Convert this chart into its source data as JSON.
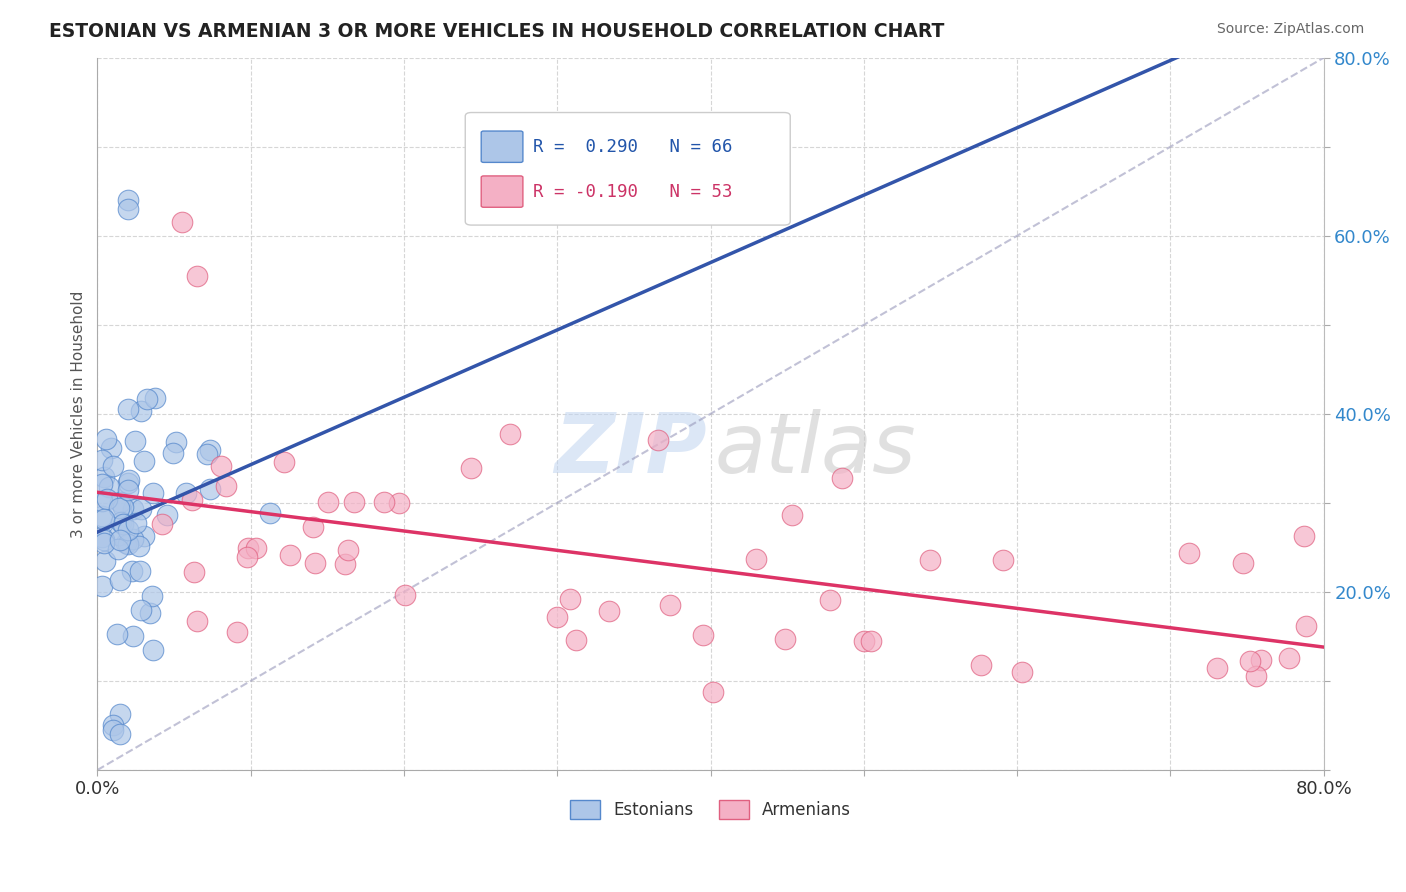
{
  "title": "ESTONIAN VS ARMENIAN 3 OR MORE VEHICLES IN HOUSEHOLD CORRELATION CHART",
  "source": "Source: ZipAtlas.com",
  "ylabel": "3 or more Vehicles in Household",
  "xmin": 0.0,
  "xmax": 0.8,
  "ymin": 0.0,
  "ymax": 0.8,
  "estonian_color": "#adc6e8",
  "armenian_color": "#f4b0c5",
  "estonian_edge": "#5588cc",
  "armenian_edge": "#e06080",
  "trend_blue": "#3355aa",
  "trend_pink": "#dd3366",
  "diag_color": "#9999bb",
  "legend_R_estonian": "R =  0.290",
  "legend_N_estonian": "N = 66",
  "legend_R_armenian": "R = -0.190",
  "legend_N_armenian": "N = 53",
  "n_estonian": 66,
  "n_armenian": 53,
  "watermark_zip_color": "#c0d4f0",
  "watermark_atlas_color": "#c8c8c8",
  "xtick_vals": [
    0.0,
    0.1,
    0.2,
    0.3,
    0.4,
    0.5,
    0.6,
    0.7,
    0.8
  ],
  "xtick_labels": [
    "0.0%",
    "",
    "",
    "",
    "",
    "",
    "",
    "",
    "80.0%"
  ],
  "ytick_vals": [
    0.0,
    0.1,
    0.2,
    0.3,
    0.4,
    0.5,
    0.6,
    0.7,
    0.8
  ],
  "ytick_labels": [
    "",
    "",
    "20.0%",
    "",
    "40.0%",
    "",
    "60.0%",
    "",
    "80.0%"
  ]
}
